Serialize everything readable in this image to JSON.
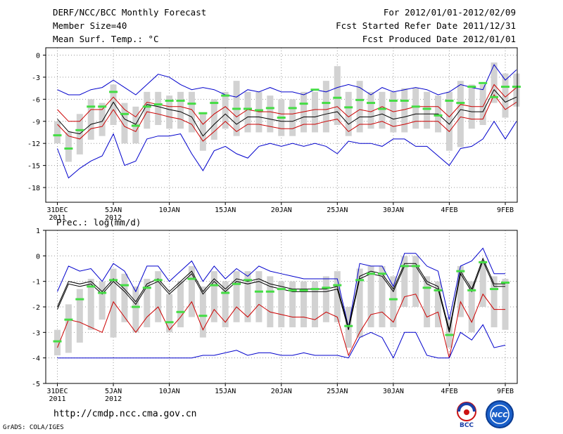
{
  "header": {
    "title": "DERF/NCC/BCC Monthly Forecast",
    "member_size": "Member Size=40",
    "variable": "Mean Surf. Temp.: °C",
    "period": "For 2012/01/01-2012/02/09",
    "started": "Fcst Started Refer Date 2011/12/31",
    "produced": "Fcst Produced Date 2012/01/01"
  },
  "footer": {
    "url": "http://cmdp.ncc.cma.gov.cn",
    "credit": "GrADS: COLA/IGES",
    "logo_left_text": "BCC",
    "logo_right_text": "NCC"
  },
  "colors": {
    "ensemble_max_min": "#0000cc",
    "spread_band": "#cc0000",
    "ensemble_mean": "#000000",
    "member_bars": "#d2d2d2",
    "median_marks": "#44dd44"
  },
  "chart_data": [
    {
      "type": "line",
      "id": "temperature",
      "title": "",
      "xlabel": "",
      "ylabel": "Mean Surf. Temp.: °C",
      "xlim": [
        0,
        40
      ],
      "ylim": [
        -20,
        1
      ],
      "yticks": [
        0,
        -3,
        -6,
        -9,
        -12,
        -15,
        -18
      ],
      "ytick_labels": [
        "0",
        "-3",
        "-6",
        "-9",
        "-12",
        "-15",
        "-18"
      ],
      "xtick_days": [
        0,
        5,
        10,
        15,
        20,
        25,
        30,
        35,
        40
      ],
      "xtick_labels": [
        "31DEC",
        "5JAN",
        "10JAN",
        "15JAN",
        "20JAN",
        "25JAN",
        "30JAN",
        "4FEB",
        "9FEB"
      ],
      "xtick_sublabels": [
        "2011",
        "2012",
        "",
        "",
        "",
        "",
        "",
        "",
        ""
      ],
      "grid": true,
      "series": [
        {
          "name": "max",
          "color": "#0000cc",
          "values": [
            -4.7,
            -5.4,
            -5.4,
            -4.7,
            -4.4,
            -3.4,
            -4.4,
            -5.4,
            -4.0,
            -2.6,
            -3.0,
            -4.0,
            -4.7,
            -4.4,
            -4.7,
            -5.4,
            -5.7,
            -4.7,
            -5.0,
            -4.4,
            -5.0,
            -5.0,
            -5.4,
            -4.7,
            -5.0,
            -4.4,
            -4.0,
            -4.4,
            -5.4,
            -4.4,
            -5.0,
            -4.7,
            -4.4,
            -4.7,
            -5.4,
            -5.0,
            -4.0,
            -4.4,
            -4.7,
            -1.3,
            -3.4,
            -2.0
          ]
        },
        {
          "name": "spread_upper",
          "color": "#cc0000",
          "values": [
            -7.4,
            -9.0,
            -9.0,
            -7.4,
            -7.4,
            -5.7,
            -7.4,
            -8.4,
            -6.4,
            -6.7,
            -7.0,
            -7.0,
            -7.4,
            -9.4,
            -8.0,
            -7.0,
            -8.4,
            -7.4,
            -7.7,
            -7.7,
            -8.0,
            -8.0,
            -7.7,
            -7.4,
            -7.4,
            -7.0,
            -8.4,
            -7.4,
            -7.7,
            -7.0,
            -7.7,
            -7.4,
            -7.0,
            -7.0,
            -7.0,
            -8.4,
            -6.7,
            -7.0,
            -7.0,
            -4.0,
            -5.7,
            -4.4
          ]
        },
        {
          "name": "mean",
          "color": "#000000",
          "values": [
            -8.7,
            -10.4,
            -10.7,
            -9.4,
            -9.0,
            -6.4,
            -8.7,
            -9.4,
            -6.7,
            -7.0,
            -7.4,
            -7.7,
            -8.4,
            -11.0,
            -9.4,
            -8.0,
            -9.4,
            -8.4,
            -8.4,
            -8.7,
            -9.0,
            -9.0,
            -8.4,
            -8.4,
            -8.0,
            -7.7,
            -9.4,
            -8.4,
            -8.4,
            -8.0,
            -8.7,
            -8.4,
            -8.0,
            -8.0,
            -8.0,
            -9.4,
            -7.4,
            -7.7,
            -7.7,
            -4.7,
            -6.4,
            -5.7
          ]
        },
        {
          "name": "spread_lower",
          "color": "#cc0000",
          "values": [
            -9.4,
            -11.0,
            -11.4,
            -10.0,
            -9.7,
            -7.4,
            -9.7,
            -10.4,
            -7.7,
            -8.0,
            -8.4,
            -8.7,
            -9.4,
            -11.7,
            -10.4,
            -9.0,
            -10.4,
            -9.4,
            -9.4,
            -9.7,
            -10.0,
            -10.0,
            -9.4,
            -9.4,
            -9.0,
            -8.7,
            -10.4,
            -9.4,
            -9.4,
            -9.0,
            -9.7,
            -9.4,
            -9.0,
            -9.0,
            -9.0,
            -10.4,
            -8.4,
            -8.7,
            -8.7,
            -5.4,
            -7.4,
            -6.4
          ]
        },
        {
          "name": "min",
          "color": "#0000cc",
          "values": [
            -12.7,
            -16.7,
            -15.4,
            -14.4,
            -13.7,
            -10.7,
            -15.0,
            -14.4,
            -11.4,
            -11.0,
            -11.0,
            -10.7,
            -13.4,
            -15.7,
            -13.0,
            -12.4,
            -13.4,
            -14.0,
            -12.4,
            -12.0,
            -12.4,
            -12.0,
            -12.4,
            -12.0,
            -12.4,
            -13.4,
            -11.7,
            -12.0,
            -12.0,
            -12.4,
            -11.4,
            -11.4,
            -12.4,
            -12.4,
            -13.7,
            -15.0,
            -12.7,
            -12.4,
            -11.4,
            -9.0,
            -11.4,
            -9.0
          ]
        }
      ],
      "member_bars": [
        {
          "lo": -12.0,
          "hi": -9.0
        },
        {
          "lo": -14.5,
          "hi": -10.5
        },
        {
          "lo": -13.5,
          "hi": -8.0
        },
        {
          "lo": -11.5,
          "hi": -6.0
        },
        {
          "lo": -11.0,
          "hi": -6.5
        },
        {
          "lo": -9.5,
          "hi": -4.0
        },
        {
          "lo": -12.0,
          "hi": -6.5
        },
        {
          "lo": -12.0,
          "hi": -7.0
        },
        {
          "lo": -10.0,
          "hi": -5.0
        },
        {
          "lo": -9.5,
          "hi": -5.0
        },
        {
          "lo": -10.0,
          "hi": -5.5
        },
        {
          "lo": -10.0,
          "hi": -5.0
        },
        {
          "lo": -10.5,
          "hi": -5.0
        },
        {
          "lo": -13.0,
          "hi": -8.0
        },
        {
          "lo": -11.5,
          "hi": -6.0
        },
        {
          "lo": -10.0,
          "hi": -5.0
        },
        {
          "lo": -11.0,
          "hi": -3.5
        },
        {
          "lo": -10.5,
          "hi": -5.0
        },
        {
          "lo": -10.5,
          "hi": -5.0
        },
        {
          "lo": -10.5,
          "hi": -5.5
        },
        {
          "lo": -11.0,
          "hi": -6.0
        },
        {
          "lo": -11.0,
          "hi": -6.0
        },
        {
          "lo": -10.5,
          "hi": -5.0
        },
        {
          "lo": -10.5,
          "hi": -5.0
        },
        {
          "lo": -10.5,
          "hi": -3.5
        },
        {
          "lo": -9.5,
          "hi": -1.5
        },
        {
          "lo": -11.0,
          "hi": -5.0
        },
        {
          "lo": -10.5,
          "hi": -3.5
        },
        {
          "lo": -10.0,
          "hi": -5.0
        },
        {
          "lo": -10.0,
          "hi": -5.0
        },
        {
          "lo": -10.5,
          "hi": -5.0
        },
        {
          "lo": -10.5,
          "hi": -4.5
        },
        {
          "lo": -10.0,
          "hi": -4.5
        },
        {
          "lo": -10.0,
          "hi": -5.0
        },
        {
          "lo": -10.5,
          "hi": -5.5
        },
        {
          "lo": -13.0,
          "hi": -5.0
        },
        {
          "lo": -12.5,
          "hi": -3.5
        },
        {
          "lo": -10.0,
          "hi": -4.0
        },
        {
          "lo": -9.5,
          "hi": -4.0
        },
        {
          "lo": -6.5,
          "hi": -1.0
        },
        {
          "lo": -8.5,
          "hi": -2.5
        },
        {
          "lo": -7.0,
          "hi": -2.5
        }
      ],
      "median_marks": [
        -10.9,
        -12.7,
        -10.2,
        -7.0,
        -7.0,
        -5.0,
        -8.0,
        -9.6,
        -7.0,
        -6.7,
        -6.2,
        -6.2,
        -6.6,
        -7.9,
        -6.5,
        -5.5,
        -7.3,
        -7.3,
        -7.5,
        -7.2,
        -8.5,
        -7.2,
        -6.6,
        -4.7,
        -6.5,
        -5.8,
        -7.1,
        -6.1,
        -6.5,
        -7.3,
        -6.2,
        -6.2,
        -7.0,
        -7.3,
        -8.2,
        -6.2,
        -6.5,
        -4.3,
        -3.8,
        -5.7,
        -4.3,
        -4.3
      ]
    },
    {
      "type": "line",
      "id": "precipitation",
      "title": "Prec.: log(mm/d)",
      "xlabel": "",
      "ylabel": "",
      "xlim": [
        0,
        40
      ],
      "ylim": [
        -5,
        1
      ],
      "yticks": [
        1,
        0,
        -1,
        -2,
        -3,
        -4,
        -5
      ],
      "ytick_labels": [
        "1",
        "0",
        "-1",
        "-2",
        "-3",
        "-4",
        "-5"
      ],
      "xtick_days": [
        0,
        5,
        10,
        15,
        20,
        25,
        30,
        35,
        40
      ],
      "xtick_labels": [
        "31DEC",
        "5JAN",
        "10JAN",
        "15JAN",
        "20JAN",
        "25JAN",
        "30JAN",
        "4FEB",
        "9FEB"
      ],
      "xtick_sublabels": [
        "2011",
        "2012",
        "",
        "",
        "",
        "",
        "",
        "",
        ""
      ],
      "grid": true,
      "series": [
        {
          "name": "max",
          "color": "#0000cc",
          "values": [
            -1.4,
            -0.4,
            -0.6,
            -0.5,
            -1.0,
            -0.3,
            -0.6,
            -1.4,
            -0.4,
            -0.4,
            -1.0,
            -0.6,
            -0.2,
            -1.0,
            -0.4,
            -0.9,
            -0.5,
            -0.8,
            -0.4,
            -0.6,
            -0.7,
            -0.8,
            -0.9,
            -0.9,
            -0.9,
            -0.9,
            -2.8,
            -0.3,
            -0.4,
            -0.4,
            -1.2,
            0.1,
            0.1,
            -0.4,
            -0.6,
            -2.5,
            -0.4,
            -0.2,
            0.3,
            -0.7,
            -0.7
          ]
        },
        {
          "name": "spread_upper",
          "color": "#000000",
          "values": [
            -2.1,
            -1.1,
            -1.2,
            -1.1,
            -1.5,
            -1.0,
            -1.4,
            -1.9,
            -1.2,
            -1.0,
            -1.5,
            -1.1,
            -0.7,
            -1.5,
            -1.0,
            -1.4,
            -1.0,
            -1.1,
            -1.0,
            -1.2,
            -1.3,
            -1.4,
            -1.4,
            -1.4,
            -1.4,
            -1.3,
            -2.9,
            -0.9,
            -0.7,
            -0.8,
            -1.4,
            -0.4,
            -0.4,
            -1.1,
            -1.3,
            -3.0,
            -0.7,
            -1.4,
            -0.2,
            -1.2,
            -1.2
          ]
        },
        {
          "name": "mean",
          "color": "#000000",
          "values": [
            -2.0,
            -1.0,
            -1.1,
            -1.0,
            -1.4,
            -0.9,
            -1.3,
            -1.8,
            -1.1,
            -0.9,
            -1.4,
            -1.0,
            -0.6,
            -1.4,
            -0.9,
            -1.3,
            -0.9,
            -1.0,
            -0.9,
            -1.1,
            -1.2,
            -1.3,
            -1.3,
            -1.3,
            -1.3,
            -1.2,
            -2.8,
            -0.8,
            -0.6,
            -0.7,
            -1.3,
            -0.3,
            -0.3,
            -1.0,
            -1.2,
            -2.9,
            -0.6,
            -1.3,
            -0.1,
            -1.1,
            -1.1
          ]
        },
        {
          "name": "spread_lower",
          "color": "#cc0000",
          "values": [
            -3.6,
            -2.5,
            -2.6,
            -2.8,
            -3.0,
            -1.8,
            -2.4,
            -3.0,
            -2.4,
            -2.0,
            -2.9,
            -2.4,
            -1.8,
            -2.9,
            -2.1,
            -2.6,
            -2.0,
            -2.4,
            -1.9,
            -2.2,
            -2.3,
            -2.4,
            -2.4,
            -2.5,
            -2.2,
            -2.4,
            -3.9,
            -3.0,
            -2.3,
            -2.2,
            -2.6,
            -1.6,
            -1.5,
            -2.4,
            -2.2,
            -4.0,
            -1.8,
            -2.6,
            -1.5,
            -2.1,
            -2.1
          ]
        },
        {
          "name": "min",
          "color": "#0000cc",
          "values": [
            -4.0,
            -4.0,
            -4.0,
            -4.0,
            -4.0,
            -4.0,
            -4.0,
            -4.0,
            -4.0,
            -4.0,
            -4.0,
            -4.0,
            -4.0,
            -3.9,
            -3.9,
            -3.8,
            -3.7,
            -3.9,
            -3.8,
            -3.8,
            -3.9,
            -3.9,
            -3.8,
            -3.9,
            -3.9,
            -3.9,
            -4.0,
            -3.2,
            -3.0,
            -3.2,
            -4.0,
            -3.0,
            -3.0,
            -3.9,
            -4.0,
            -4.0,
            -3.0,
            -3.3,
            -2.7,
            -3.6,
            -3.5
          ]
        }
      ],
      "member_bars": [
        {
          "lo": -3.9,
          "hi": -2.9
        },
        {
          "lo": -3.8,
          "hi": -1.9
        },
        {
          "lo": -3.4,
          "hi": -1.3
        },
        {
          "lo": -2.9,
          "hi": -0.9
        },
        {
          "lo": -2.5,
          "hi": -1.0
        },
        {
          "lo": -3.2,
          "hi": -0.5
        },
        {
          "lo": -2.6,
          "hi": -0.7
        },
        {
          "lo": -3.0,
          "hi": -1.2
        },
        {
          "lo": -2.8,
          "hi": -0.9
        },
        {
          "lo": -2.6,
          "hi": -0.6
        },
        {
          "lo": -3.0,
          "hi": -1.5
        },
        {
          "lo": -2.8,
          "hi": -1.0
        },
        {
          "lo": -2.4,
          "hi": -0.4
        },
        {
          "lo": -3.2,
          "hi": -1.2
        },
        {
          "lo": -2.6,
          "hi": -0.6
        },
        {
          "lo": -2.8,
          "hi": -1.0
        },
        {
          "lo": -2.6,
          "hi": -0.6
        },
        {
          "lo": -2.6,
          "hi": -0.6
        },
        {
          "lo": -2.6,
          "hi": -0.6
        },
        {
          "lo": -2.8,
          "hi": -0.8
        },
        {
          "lo": -2.8,
          "hi": -1.0
        },
        {
          "lo": -2.8,
          "hi": -1.0
        },
        {
          "lo": -2.8,
          "hi": -1.0
        },
        {
          "lo": -2.8,
          "hi": -1.0
        },
        {
          "lo": -2.6,
          "hi": -0.8
        },
        {
          "lo": -2.6,
          "hi": -0.6
        },
        {
          "lo": -3.6,
          "hi": -2.0
        },
        {
          "lo": -3.2,
          "hi": -0.5
        },
        {
          "lo": -2.8,
          "hi": -0.4
        },
        {
          "lo": -2.8,
          "hi": -0.4
        },
        {
          "lo": -2.8,
          "hi": -0.8
        },
        {
          "lo": -2.0,
          "hi": 0.0
        },
        {
          "lo": -2.0,
          "hi": 0.0
        },
        {
          "lo": -2.8,
          "hi": -0.8
        },
        {
          "lo": -2.8,
          "hi": -1.0
        },
        {
          "lo": -3.6,
          "hi": -2.4
        },
        {
          "lo": -2.4,
          "hi": -0.4
        },
        {
          "lo": -3.0,
          "hi": -1.0
        },
        {
          "lo": -2.0,
          "hi": -0.2
        },
        {
          "lo": -2.8,
          "hi": -0.8
        },
        {
          "lo": -2.9,
          "hi": -0.9
        }
      ],
      "median_marks": [
        -3.35,
        -2.5,
        -1.7,
        -1.2,
        -1.45,
        -0.95,
        -1.15,
        -2.0,
        -1.25,
        -0.95,
        -2.6,
        -2.2,
        -0.9,
        -2.35,
        -1.15,
        -1.45,
        -1.1,
        -0.95,
        -1.4,
        -1.4,
        -1.3,
        -1.35,
        -1.35,
        -1.3,
        -1.25,
        -1.15,
        -2.75,
        -0.95,
        -0.7,
        -0.7,
        -1.7,
        -0.4,
        -0.4,
        -1.25,
        -1.35,
        -3.1,
        -0.6,
        -1.35,
        -0.25,
        -1.3,
        -1.05
      ]
    }
  ]
}
